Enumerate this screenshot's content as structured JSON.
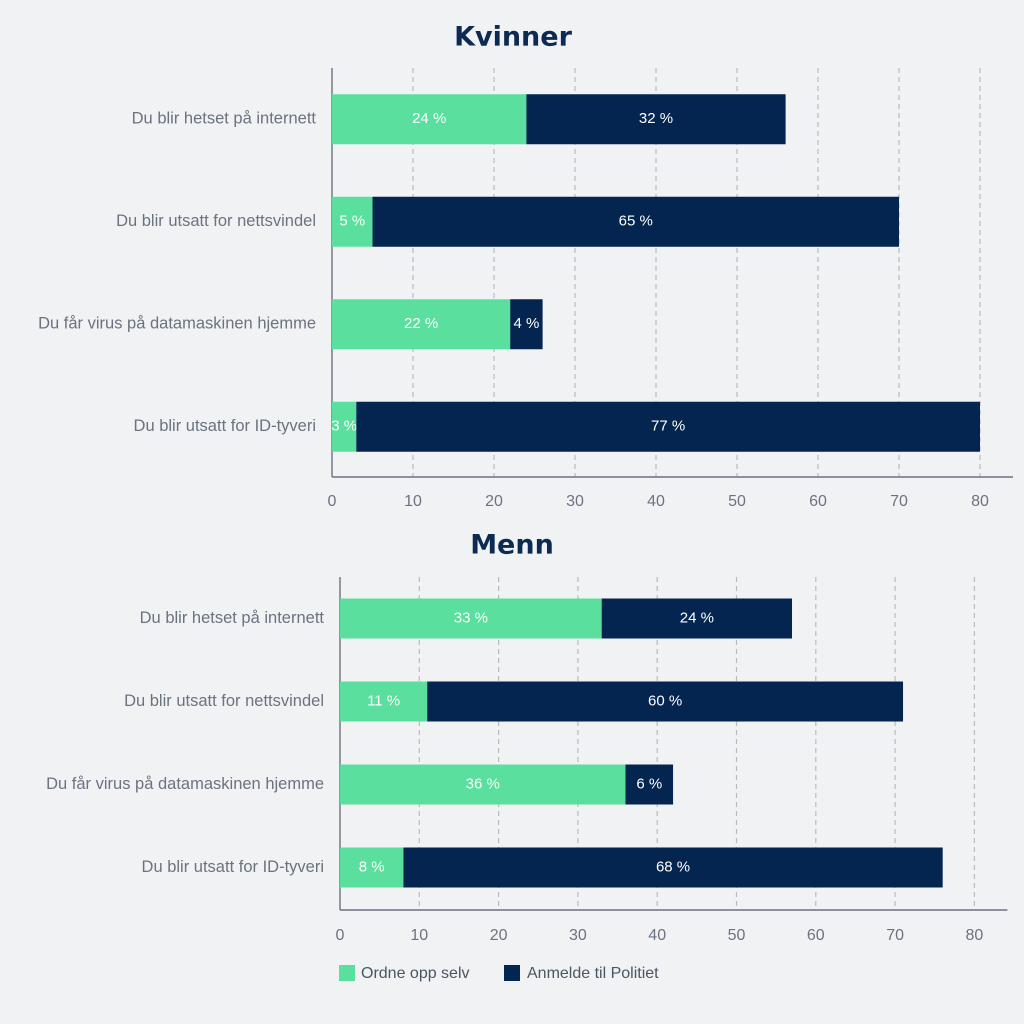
{
  "colors": {
    "self": "#5adf9e",
    "police": "#04254f",
    "grid": "#b8bcc2",
    "axis": "#6b7280"
  },
  "legend": [
    {
      "label": "Ordne opp selv",
      "color": "#5adf9e"
    },
    {
      "label": "Anmelde til Politiet",
      "color": "#04254f"
    }
  ],
  "chart_data": [
    {
      "type": "bar",
      "orientation": "horizontal",
      "stacked": true,
      "title": "Kvinner",
      "categories": [
        "Du blir hetset på internett",
        "Du blir utsatt for nettsvindel",
        "Du får virus på datamaskinen hjemme",
        "Du blir utsatt for ID-tyveri"
      ],
      "series": [
        {
          "name": "Ordne opp selv",
          "values": [
            24,
            5,
            22,
            3
          ],
          "labels": [
            "24 %",
            "5 %",
            "22 %",
            "3 %"
          ]
        },
        {
          "name": "Anmelde til Politiet",
          "values": [
            32,
            65,
            4,
            77
          ],
          "labels": [
            "32 %",
            "65 %",
            "4 %",
            "77 %"
          ]
        }
      ],
      "xlim": [
        0,
        80
      ],
      "ticks": [
        0,
        10,
        20,
        30,
        40,
        50,
        60,
        70,
        80
      ],
      "grid": true
    },
    {
      "type": "bar",
      "orientation": "horizontal",
      "stacked": true,
      "title": "Menn",
      "categories": [
        "Du blir hetset på internett",
        "Du blir utsatt for nettsvindel",
        "Du får virus på datamaskinen hjemme",
        "Du blir utsatt for ID-tyveri"
      ],
      "series": [
        {
          "name": "Ordne opp selv",
          "values": [
            33,
            11,
            36,
            8
          ],
          "labels": [
            "33 %",
            "11 %",
            "36 %",
            "8 %"
          ]
        },
        {
          "name": "Anmelde til Politiet",
          "values": [
            24,
            60,
            6,
            68
          ],
          "labels": [
            "24 %",
            "60 %",
            "6 %",
            "68 %"
          ]
        }
      ],
      "xlim": [
        0,
        80
      ],
      "ticks": [
        0,
        10,
        20,
        30,
        40,
        50,
        60,
        70,
        80
      ],
      "grid": true
    }
  ]
}
